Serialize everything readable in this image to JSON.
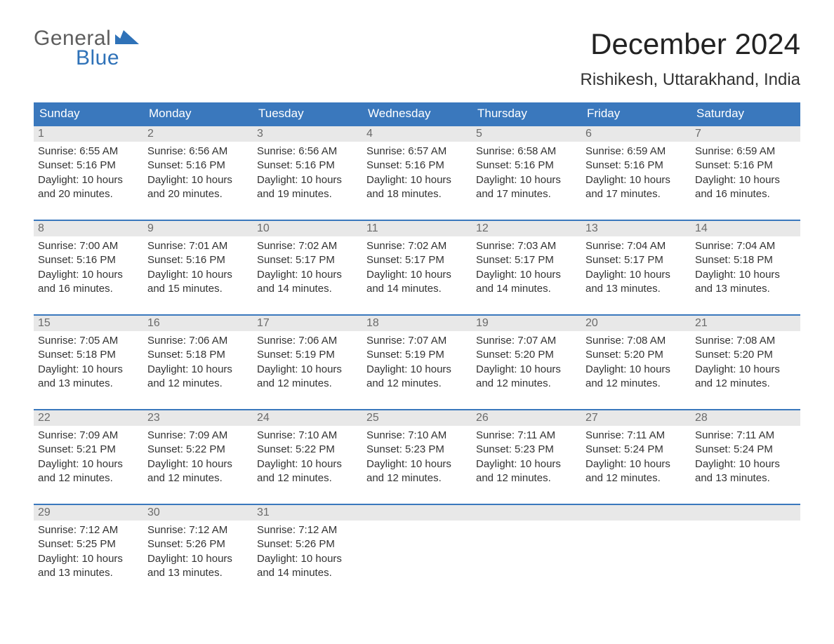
{
  "logo": {
    "text_gray": "General",
    "text_blue": "Blue",
    "gray_color": "#5e5e5e",
    "blue_color": "#2f72b8"
  },
  "title": "December 2024",
  "location": "Rishikesh, Uttarakhand, India",
  "colors": {
    "header_bg": "#3a78bd",
    "header_text": "#ffffff",
    "daynum_bg": "#e8e8e8",
    "daynum_text": "#6b6b6b",
    "body_text": "#333333",
    "accent_rule": "#3a78bd"
  },
  "days_of_week": [
    "Sunday",
    "Monday",
    "Tuesday",
    "Wednesday",
    "Thursday",
    "Friday",
    "Saturday"
  ],
  "weeks": [
    [
      {
        "num": "1",
        "sunrise": "Sunrise: 6:55 AM",
        "sunset": "Sunset: 5:16 PM",
        "day1": "Daylight: 10 hours",
        "day2": "and 20 minutes."
      },
      {
        "num": "2",
        "sunrise": "Sunrise: 6:56 AM",
        "sunset": "Sunset: 5:16 PM",
        "day1": "Daylight: 10 hours",
        "day2": "and 20 minutes."
      },
      {
        "num": "3",
        "sunrise": "Sunrise: 6:56 AM",
        "sunset": "Sunset: 5:16 PM",
        "day1": "Daylight: 10 hours",
        "day2": "and 19 minutes."
      },
      {
        "num": "4",
        "sunrise": "Sunrise: 6:57 AM",
        "sunset": "Sunset: 5:16 PM",
        "day1": "Daylight: 10 hours",
        "day2": "and 18 minutes."
      },
      {
        "num": "5",
        "sunrise": "Sunrise: 6:58 AM",
        "sunset": "Sunset: 5:16 PM",
        "day1": "Daylight: 10 hours",
        "day2": "and 17 minutes."
      },
      {
        "num": "6",
        "sunrise": "Sunrise: 6:59 AM",
        "sunset": "Sunset: 5:16 PM",
        "day1": "Daylight: 10 hours",
        "day2": "and 17 minutes."
      },
      {
        "num": "7",
        "sunrise": "Sunrise: 6:59 AM",
        "sunset": "Sunset: 5:16 PM",
        "day1": "Daylight: 10 hours",
        "day2": "and 16 minutes."
      }
    ],
    [
      {
        "num": "8",
        "sunrise": "Sunrise: 7:00 AM",
        "sunset": "Sunset: 5:16 PM",
        "day1": "Daylight: 10 hours",
        "day2": "and 16 minutes."
      },
      {
        "num": "9",
        "sunrise": "Sunrise: 7:01 AM",
        "sunset": "Sunset: 5:16 PM",
        "day1": "Daylight: 10 hours",
        "day2": "and 15 minutes."
      },
      {
        "num": "10",
        "sunrise": "Sunrise: 7:02 AM",
        "sunset": "Sunset: 5:17 PM",
        "day1": "Daylight: 10 hours",
        "day2": "and 14 minutes."
      },
      {
        "num": "11",
        "sunrise": "Sunrise: 7:02 AM",
        "sunset": "Sunset: 5:17 PM",
        "day1": "Daylight: 10 hours",
        "day2": "and 14 minutes."
      },
      {
        "num": "12",
        "sunrise": "Sunrise: 7:03 AM",
        "sunset": "Sunset: 5:17 PM",
        "day1": "Daylight: 10 hours",
        "day2": "and 14 minutes."
      },
      {
        "num": "13",
        "sunrise": "Sunrise: 7:04 AM",
        "sunset": "Sunset: 5:17 PM",
        "day1": "Daylight: 10 hours",
        "day2": "and 13 minutes."
      },
      {
        "num": "14",
        "sunrise": "Sunrise: 7:04 AM",
        "sunset": "Sunset: 5:18 PM",
        "day1": "Daylight: 10 hours",
        "day2": "and 13 minutes."
      }
    ],
    [
      {
        "num": "15",
        "sunrise": "Sunrise: 7:05 AM",
        "sunset": "Sunset: 5:18 PM",
        "day1": "Daylight: 10 hours",
        "day2": "and 13 minutes."
      },
      {
        "num": "16",
        "sunrise": "Sunrise: 7:06 AM",
        "sunset": "Sunset: 5:18 PM",
        "day1": "Daylight: 10 hours",
        "day2": "and 12 minutes."
      },
      {
        "num": "17",
        "sunrise": "Sunrise: 7:06 AM",
        "sunset": "Sunset: 5:19 PM",
        "day1": "Daylight: 10 hours",
        "day2": "and 12 minutes."
      },
      {
        "num": "18",
        "sunrise": "Sunrise: 7:07 AM",
        "sunset": "Sunset: 5:19 PM",
        "day1": "Daylight: 10 hours",
        "day2": "and 12 minutes."
      },
      {
        "num": "19",
        "sunrise": "Sunrise: 7:07 AM",
        "sunset": "Sunset: 5:20 PM",
        "day1": "Daylight: 10 hours",
        "day2": "and 12 minutes."
      },
      {
        "num": "20",
        "sunrise": "Sunrise: 7:08 AM",
        "sunset": "Sunset: 5:20 PM",
        "day1": "Daylight: 10 hours",
        "day2": "and 12 minutes."
      },
      {
        "num": "21",
        "sunrise": "Sunrise: 7:08 AM",
        "sunset": "Sunset: 5:20 PM",
        "day1": "Daylight: 10 hours",
        "day2": "and 12 minutes."
      }
    ],
    [
      {
        "num": "22",
        "sunrise": "Sunrise: 7:09 AM",
        "sunset": "Sunset: 5:21 PM",
        "day1": "Daylight: 10 hours",
        "day2": "and 12 minutes."
      },
      {
        "num": "23",
        "sunrise": "Sunrise: 7:09 AM",
        "sunset": "Sunset: 5:22 PM",
        "day1": "Daylight: 10 hours",
        "day2": "and 12 minutes."
      },
      {
        "num": "24",
        "sunrise": "Sunrise: 7:10 AM",
        "sunset": "Sunset: 5:22 PM",
        "day1": "Daylight: 10 hours",
        "day2": "and 12 minutes."
      },
      {
        "num": "25",
        "sunrise": "Sunrise: 7:10 AM",
        "sunset": "Sunset: 5:23 PM",
        "day1": "Daylight: 10 hours",
        "day2": "and 12 minutes."
      },
      {
        "num": "26",
        "sunrise": "Sunrise: 7:11 AM",
        "sunset": "Sunset: 5:23 PM",
        "day1": "Daylight: 10 hours",
        "day2": "and 12 minutes."
      },
      {
        "num": "27",
        "sunrise": "Sunrise: 7:11 AM",
        "sunset": "Sunset: 5:24 PM",
        "day1": "Daylight: 10 hours",
        "day2": "and 12 minutes."
      },
      {
        "num": "28",
        "sunrise": "Sunrise: 7:11 AM",
        "sunset": "Sunset: 5:24 PM",
        "day1": "Daylight: 10 hours",
        "day2": "and 13 minutes."
      }
    ],
    [
      {
        "num": "29",
        "sunrise": "Sunrise: 7:12 AM",
        "sunset": "Sunset: 5:25 PM",
        "day1": "Daylight: 10 hours",
        "day2": "and 13 minutes."
      },
      {
        "num": "30",
        "sunrise": "Sunrise: 7:12 AM",
        "sunset": "Sunset: 5:26 PM",
        "day1": "Daylight: 10 hours",
        "day2": "and 13 minutes."
      },
      {
        "num": "31",
        "sunrise": "Sunrise: 7:12 AM",
        "sunset": "Sunset: 5:26 PM",
        "day1": "Daylight: 10 hours",
        "day2": "and 14 minutes."
      },
      {
        "num": "",
        "sunrise": "",
        "sunset": "",
        "day1": "",
        "day2": ""
      },
      {
        "num": "",
        "sunrise": "",
        "sunset": "",
        "day1": "",
        "day2": ""
      },
      {
        "num": "",
        "sunrise": "",
        "sunset": "",
        "day1": "",
        "day2": ""
      },
      {
        "num": "",
        "sunrise": "",
        "sunset": "",
        "day1": "",
        "day2": ""
      }
    ]
  ]
}
